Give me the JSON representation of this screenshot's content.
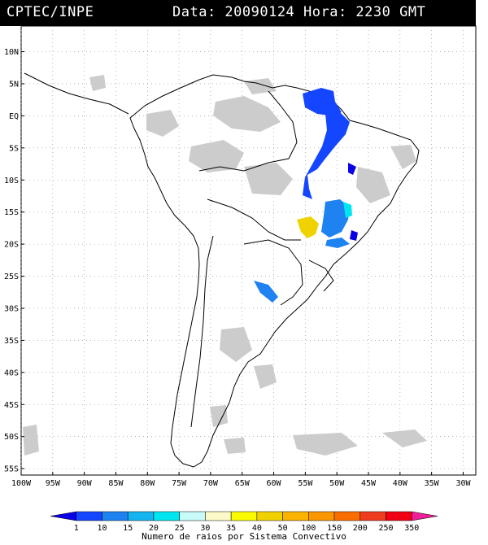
{
  "header": {
    "source": "CPTEC/INPE",
    "datetime": "Data: 20090124 Hora: 2230 GMT"
  },
  "map": {
    "lon_range": [
      -100,
      -28
    ],
    "lat_range": [
      -56,
      14
    ],
    "lat_labels": [
      "10N",
      "5N",
      "EQ",
      "5S",
      "10S",
      "15S",
      "20S",
      "25S",
      "30S",
      "35S",
      "40S",
      "45S",
      "50S",
      "55S"
    ],
    "lat_values": [
      10,
      5,
      0,
      -5,
      -10,
      -15,
      -20,
      -25,
      -30,
      -35,
      -40,
      -45,
      -50,
      -55
    ],
    "lon_labels": [
      "100W",
      "95W",
      "90W",
      "85W",
      "80W",
      "75W",
      "70W",
      "65W",
      "60W",
      "55W",
      "50W",
      "45W",
      "40W",
      "35W",
      "30W"
    ],
    "lon_values": [
      -100,
      -95,
      -90,
      -85,
      -80,
      -75,
      -70,
      -65,
      -60,
      -55,
      -50,
      -45,
      -40,
      -35,
      -30
    ],
    "colors": {
      "land_outline": "#000000",
      "cloud": "#c8c8c8",
      "grid": "#888888"
    }
  },
  "legend": {
    "title": "Numero de raios por Sistema Convectivo",
    "labels": [
      "1",
      "10",
      "15",
      "20",
      "25",
      "30",
      "35",
      "40",
      "50",
      "100",
      "150",
      "200",
      "250",
      "350"
    ],
    "colors": [
      "#0a00e6",
      "#1546ff",
      "#1e82f0",
      "#14b4f0",
      "#00e6f0",
      "#c8fafa",
      "#fafac8",
      "#fafa00",
      "#f0d200",
      "#fab400",
      "#fa9600",
      "#fa6e00",
      "#f03c1e",
      "#f00014",
      "#f01e96"
    ]
  },
  "chart_data": {
    "type": "map",
    "title": "CPTEC/INPE Data: 20090124 Hora: 2230 GMT",
    "legend_title": "Numero de raios por Sistema Convectivo",
    "legend_bins": [
      "1",
      "10",
      "15",
      "20",
      "25",
      "30",
      "35",
      "40",
      "50",
      "100",
      "150",
      "200",
      "250",
      "350"
    ],
    "convective_systems": [
      {
        "name": "",
        "lon": -49.5,
        "lat": 0.5,
        "bin": "10"
      },
      {
        "name": "",
        "lon": -48.5,
        "lat": -2.5,
        "bin": "10"
      },
      {
        "name": "",
        "lon": -50,
        "lat": -7,
        "bin": "10"
      },
      {
        "name": "",
        "lon": -51.5,
        "lat": -11,
        "bin": "10"
      },
      {
        "name": "",
        "lon": -48.5,
        "lat": -17.5,
        "bin": "15"
      },
      {
        "name": "",
        "lon": -46,
        "lat": -16.5,
        "bin": "25"
      },
      {
        "name": "",
        "lon": -53,
        "lat": -18.5,
        "bin": "50"
      },
      {
        "name": "",
        "lon": -44.5,
        "lat": -19.5,
        "bin": "1"
      },
      {
        "name": "",
        "lon": -59.5,
        "lat": -27.5,
        "bin": "10"
      }
    ]
  }
}
